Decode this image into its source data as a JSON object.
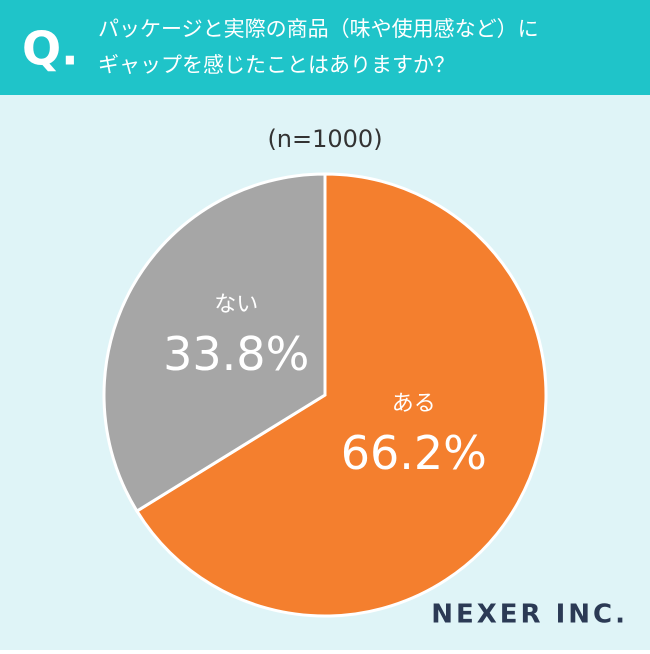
{
  "header": {
    "mark": "Q."
  },
  "chart_data": {
    "type": "pie",
    "title": [
      "パッケージと実際の商品（味や使用感など）に",
      "ギャップを感じたことはありますか？"
    ],
    "subtitle": "(n=1000)",
    "categories": [
      "ある",
      "ない"
    ],
    "values": [
      66.2,
      33.8
    ],
    "value_labels": [
      "66.2%",
      "33.8%"
    ],
    "colors": [
      "#f47f2e",
      "#a6a6a6"
    ]
  },
  "footer": {
    "logo": "NEXER INC."
  }
}
